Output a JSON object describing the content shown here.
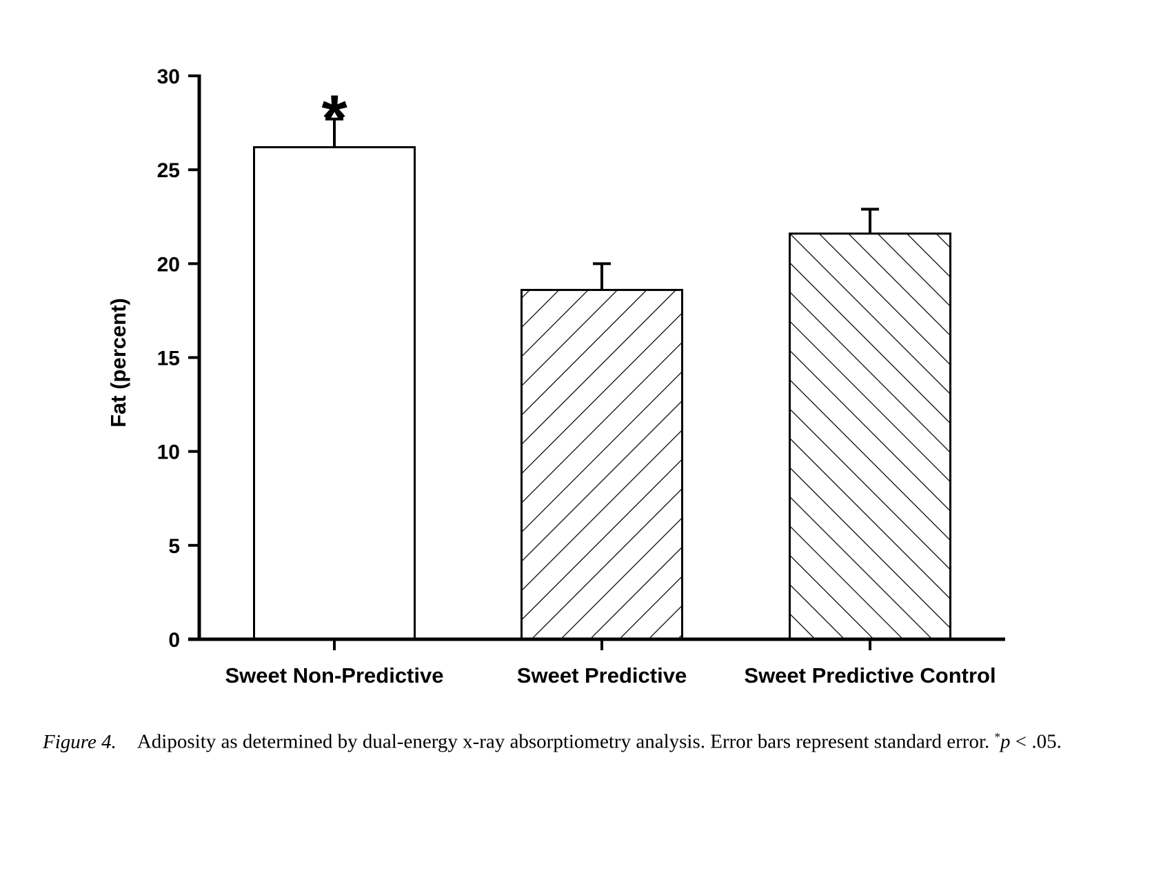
{
  "chart_data": {
    "type": "bar",
    "categories": [
      "Sweet Non-Predictive",
      "Sweet Predictive",
      "Sweet Predictive Control"
    ],
    "values": [
      26.2,
      18.6,
      21.6
    ],
    "error": [
      1.5,
      1.4,
      1.3
    ],
    "patterns": [
      "none",
      "hatch-forward",
      "hatch-backward"
    ],
    "significance": [
      "*",
      "",
      ""
    ],
    "ylabel": "Fat (percent)",
    "xlabel": "",
    "ylim": [
      0,
      30
    ],
    "yticks": [
      0,
      5,
      10,
      15,
      20,
      25,
      30
    ],
    "grid": false,
    "colors": {
      "bar_fill": "#ffffff",
      "bar_stroke": "#000000",
      "axis": "#000000"
    }
  },
  "caption": {
    "figure_label": "Figure 4.",
    "text": "Adiposity as determined by dual-energy x-ray absorptiometry analysis. Error bars represent standard error.",
    "sig_marker": "*",
    "p_symbol": "p",
    "p_rest": " < .05."
  }
}
